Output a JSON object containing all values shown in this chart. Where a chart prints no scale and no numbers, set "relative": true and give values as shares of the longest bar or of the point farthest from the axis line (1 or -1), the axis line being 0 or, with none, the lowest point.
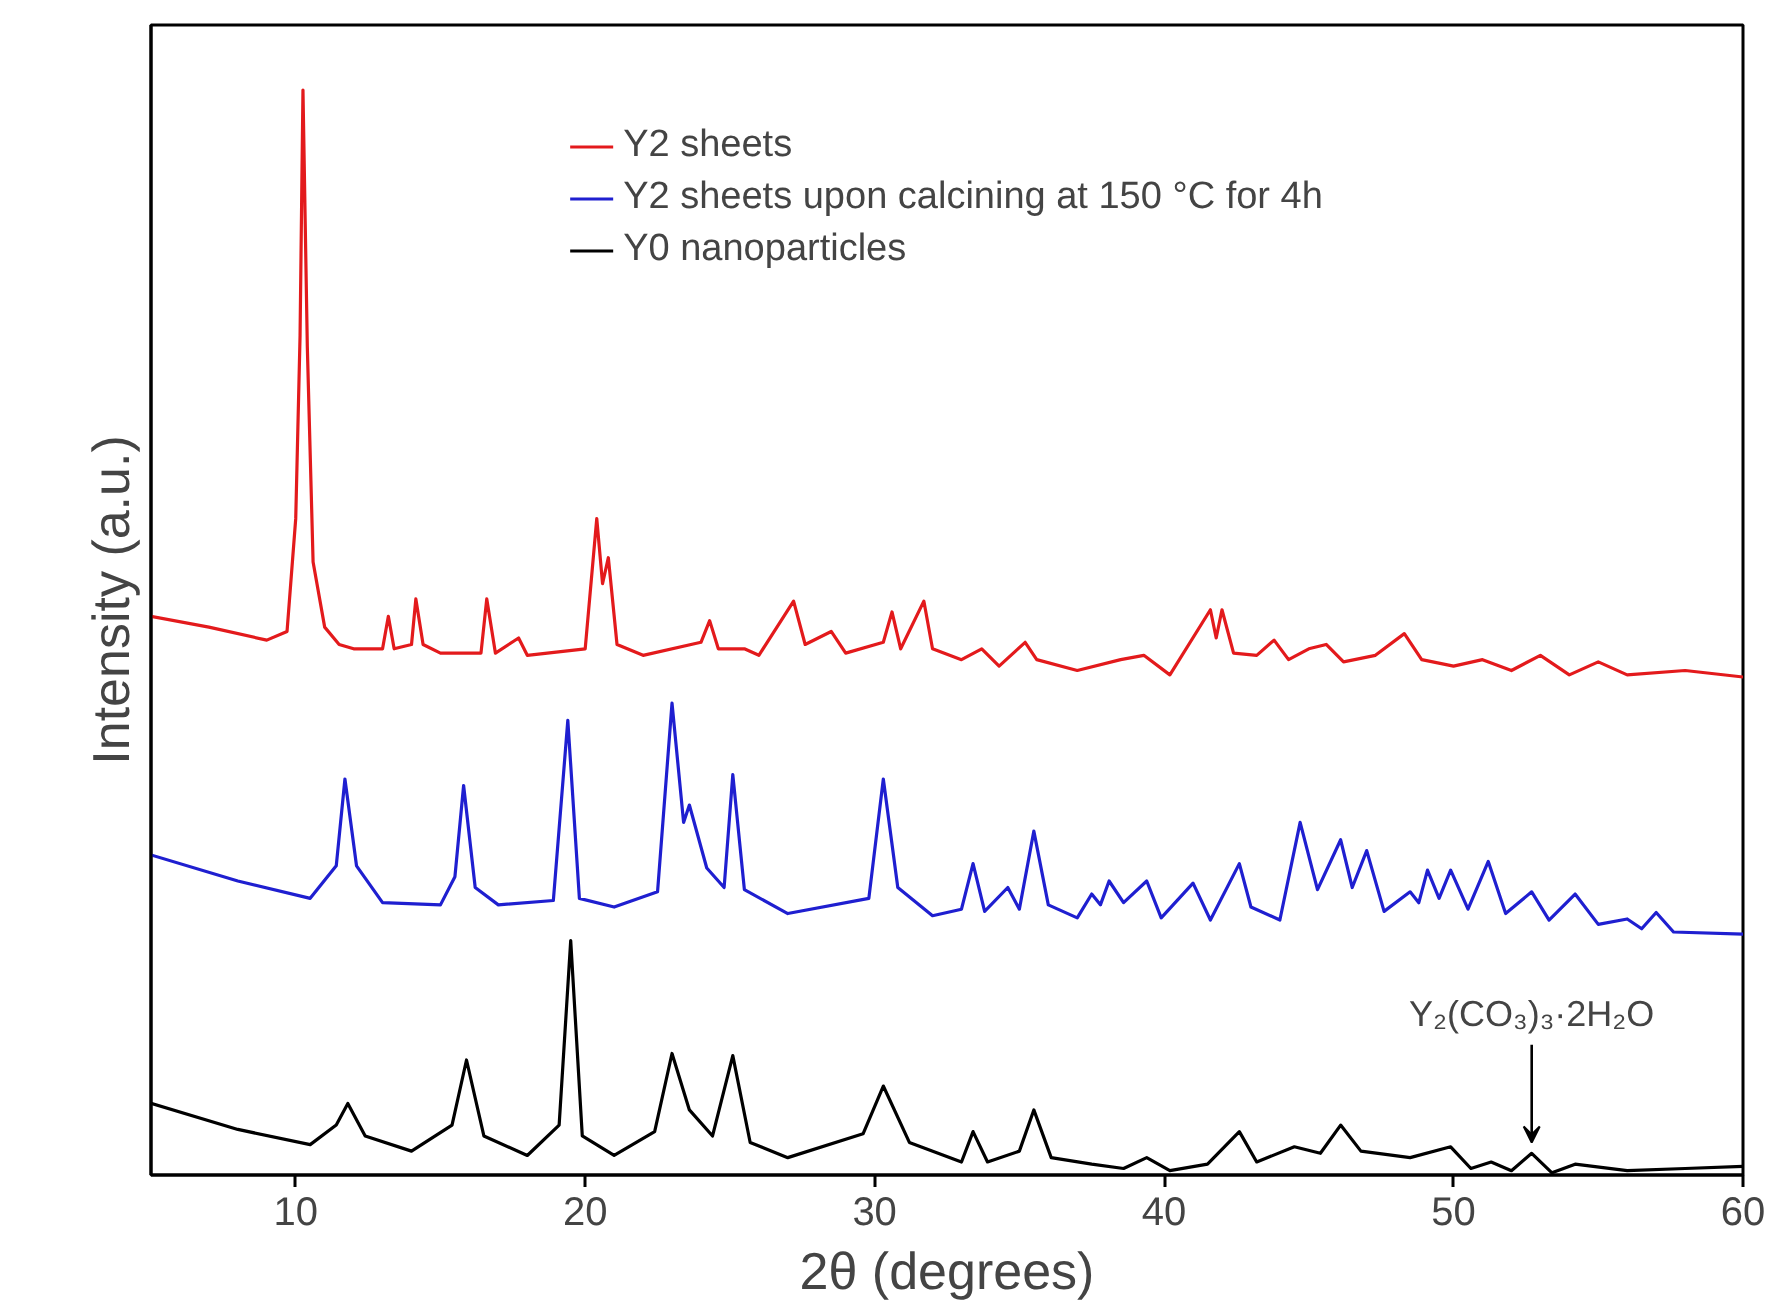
{
  "chart_data": {
    "type": "line",
    "relative": true,
    "xlabel": "2θ (degrees)",
    "ylabel": "Intensity (a.u.)",
    "xlim": [
      5,
      60
    ],
    "xticks": [
      10,
      20,
      30,
      40,
      50,
      60
    ],
    "grid": false,
    "legend": "top",
    "tick_labels": "x",
    "line_style": "solid",
    "marker": "none",
    "series": [
      {
        "name": "Y2 sheets",
        "color": "#e31a1c",
        "x": [
          5,
          7,
          9,
          9.7,
          10.0,
          10.15,
          10.25,
          10.4,
          10.6,
          11,
          11.5,
          12,
          13.0,
          13.2,
          13.4,
          14.0,
          14.15,
          14.4,
          15,
          16.4,
          16.6,
          16.9,
          17.7,
          18,
          20.0,
          20.4,
          20.6,
          20.8,
          21.1,
          22,
          24.0,
          24.3,
          24.6,
          25.5,
          26,
          27.2,
          27.6,
          28.5,
          29,
          30.3,
          30.6,
          30.9,
          31.7,
          32.0,
          33,
          33.7,
          34.3,
          35.2,
          35.6,
          37,
          38.5,
          39.3,
          40.2,
          41.6,
          41.8,
          42.0,
          42.4,
          43.2,
          43.8,
          44.3,
          45,
          45.6,
          46.2,
          47.3,
          48.3,
          48.9,
          50,
          51,
          52,
          53,
          54,
          55,
          56,
          58,
          60
        ],
        "values": [
          0.515,
          0.505,
          0.493,
          0.501,
          0.605,
          0.774,
          1.0,
          0.764,
          0.565,
          0.505,
          0.489,
          0.485,
          0.485,
          0.515,
          0.485,
          0.489,
          0.531,
          0.489,
          0.481,
          0.481,
          0.531,
          0.481,
          0.495,
          0.479,
          0.485,
          0.605,
          0.545,
          0.569,
          0.489,
          0.479,
          0.491,
          0.511,
          0.485,
          0.485,
          0.479,
          0.529,
          0.489,
          0.501,
          0.481,
          0.491,
          0.519,
          0.485,
          0.529,
          0.485,
          0.475,
          0.485,
          0.469,
          0.491,
          0.475,
          0.465,
          0.475,
          0.479,
          0.461,
          0.521,
          0.495,
          0.521,
          0.481,
          0.479,
          0.493,
          0.475,
          0.485,
          0.489,
          0.473,
          0.479,
          0.499,
          0.475,
          0.469,
          0.475,
          0.465,
          0.479,
          0.461,
          0.473,
          0.461,
          0.465,
          0.459
        ]
      },
      {
        "name": "Y2 sheets upon calcining at 150 °C for 4h",
        "color": "#1f1fd0",
        "x": [
          5,
          8,
          10.5,
          11.4,
          11.7,
          12.1,
          13,
          15,
          15.5,
          15.8,
          16.2,
          17,
          18.9,
          19.4,
          19.8,
          21,
          22.5,
          23.0,
          23.4,
          23.6,
          24.2,
          24.8,
          25.1,
          25.5,
          27,
          29.8,
          30.3,
          30.8,
          32,
          33.0,
          33.4,
          33.8,
          34.6,
          35.0,
          35.5,
          36.0,
          37,
          37.5,
          37.8,
          38.1,
          38.6,
          39.4,
          39.9,
          41.0,
          41.6,
          42.6,
          43.0,
          44.0,
          44.7,
          45.3,
          46.1,
          46.5,
          47.0,
          47.6,
          48.5,
          48.8,
          49.1,
          49.5,
          49.9,
          50.5,
          51.2,
          51.8,
          52.7,
          53.3,
          54.2,
          55.0,
          56.0,
          56.5,
          57.0,
          57.6,
          60
        ],
        "values": [
          0.295,
          0.271,
          0.255,
          0.285,
          0.365,
          0.285,
          0.251,
          0.249,
          0.275,
          0.359,
          0.265,
          0.249,
          0.253,
          0.419,
          0.255,
          0.247,
          0.261,
          0.435,
          0.325,
          0.341,
          0.283,
          0.265,
          0.369,
          0.263,
          0.241,
          0.255,
          0.365,
          0.265,
          0.239,
          0.245,
          0.287,
          0.243,
          0.265,
          0.245,
          0.317,
          0.249,
          0.237,
          0.259,
          0.249,
          0.271,
          0.251,
          0.271,
          0.237,
          0.269,
          0.235,
          0.287,
          0.247,
          0.235,
          0.325,
          0.263,
          0.309,
          0.265,
          0.299,
          0.243,
          0.261,
          0.251,
          0.281,
          0.255,
          0.281,
          0.245,
          0.289,
          0.241,
          0.261,
          0.235,
          0.259,
          0.231,
          0.236,
          0.227,
          0.242,
          0.224,
          0.222
        ]
      },
      {
        "name": "Y0 nanoparticles",
        "color": "#000000",
        "x": [
          5,
          8,
          10.5,
          11.4,
          11.8,
          12.4,
          14,
          15.4,
          15.9,
          16.5,
          18,
          19.1,
          19.5,
          19.9,
          21,
          22.4,
          23.0,
          23.6,
          24.4,
          25.1,
          25.7,
          27,
          29.6,
          30.3,
          31.2,
          33.0,
          33.4,
          33.9,
          35.0,
          35.5,
          36.1,
          37.5,
          38.6,
          39.4,
          40.2,
          41.5,
          42.6,
          43.2,
          44.5,
          45.4,
          46.1,
          46.8,
          48.5,
          49.9,
          50.6,
          51.3,
          52.0,
          52.7,
          53.4,
          54.2,
          56,
          58,
          60
        ],
        "values": [
          0.066,
          0.042,
          0.028,
          0.046,
          0.066,
          0.036,
          0.022,
          0.046,
          0.106,
          0.036,
          0.018,
          0.046,
          0.216,
          0.036,
          0.018,
          0.04,
          0.112,
          0.06,
          0.036,
          0.11,
          0.03,
          0.016,
          0.038,
          0.082,
          0.03,
          0.012,
          0.04,
          0.012,
          0.022,
          0.06,
          0.016,
          0.01,
          0.006,
          0.016,
          0.004,
          0.01,
          0.04,
          0.012,
          0.026,
          0.02,
          0.046,
          0.022,
          0.016,
          0.026,
          0.006,
          0.012,
          0.004,
          0.02,
          0.002,
          0.01,
          0.004,
          0.006,
          0.008
        ]
      }
    ],
    "annotations": [
      {
        "text": "Y₂(CO₃)₃·2H₂O",
        "x": 52.7,
        "y": 0.02
      }
    ]
  }
}
